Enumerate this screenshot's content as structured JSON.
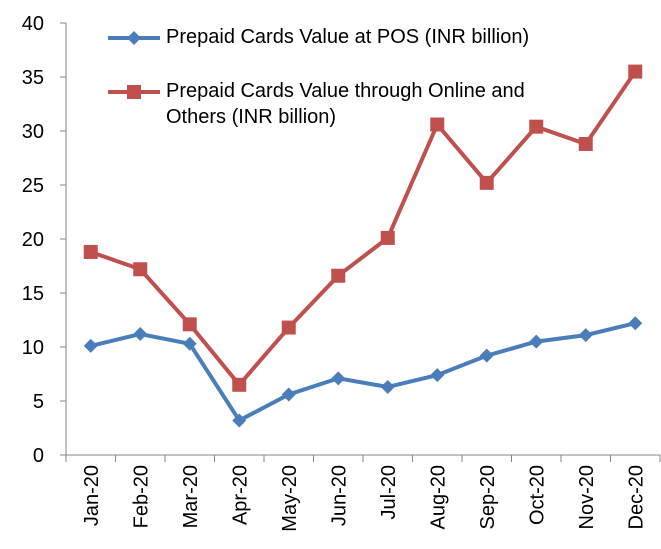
{
  "chart_data": {
    "type": "line",
    "categories": [
      "Jan-20",
      "Feb-20",
      "Mar-20",
      "Apr-20",
      "May-20",
      "Jun-20",
      "Jul-20",
      "Aug-20",
      "Sep-20",
      "Oct-20",
      "Nov-20",
      "Dec-20"
    ],
    "series": [
      {
        "name": "Prepaid Cards Value at POS (INR billion)",
        "color": "#4a7ebb",
        "marker": "diamond",
        "values": [
          10.1,
          11.2,
          10.3,
          3.2,
          5.6,
          7.1,
          6.3,
          7.4,
          9.2,
          10.5,
          11.1,
          12.2
        ]
      },
      {
        "name": "Prepaid Cards Value through Online and Others (INR billion)",
        "color": "#c0504d",
        "marker": "square",
        "values": [
          18.8,
          17.2,
          12.1,
          6.5,
          11.8,
          16.6,
          20.1,
          30.6,
          25.2,
          30.4,
          28.8,
          35.5
        ]
      }
    ],
    "ylim": [
      0,
      40
    ],
    "yticks": [
      0,
      5,
      10,
      15,
      20,
      25,
      30,
      35,
      40
    ],
    "grid": false
  }
}
